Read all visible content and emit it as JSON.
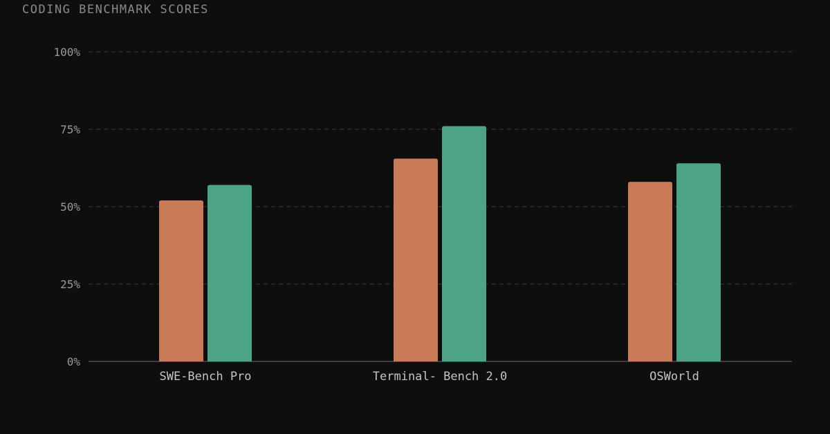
{
  "chart_data": {
    "type": "bar",
    "title": "CODING BENCHMARK SCORES",
    "categories": [
      "SWE-Bench Pro",
      "Terminal- Bench 2.0",
      "OSWorld"
    ],
    "series": [
      {
        "values": [
          52,
          65.5,
          58
        ],
        "color": "#c97b58"
      },
      {
        "values": [
          57,
          76,
          64
        ],
        "color": "#4ca485"
      }
    ],
    "ylim": [
      0,
      100
    ],
    "yticks": [
      0,
      25,
      50,
      75,
      100
    ],
    "ytick_labels": [
      "0%",
      "25%",
      "50%",
      "75%",
      "100%"
    ],
    "grid": true,
    "xlabel": "",
    "ylabel": ""
  }
}
